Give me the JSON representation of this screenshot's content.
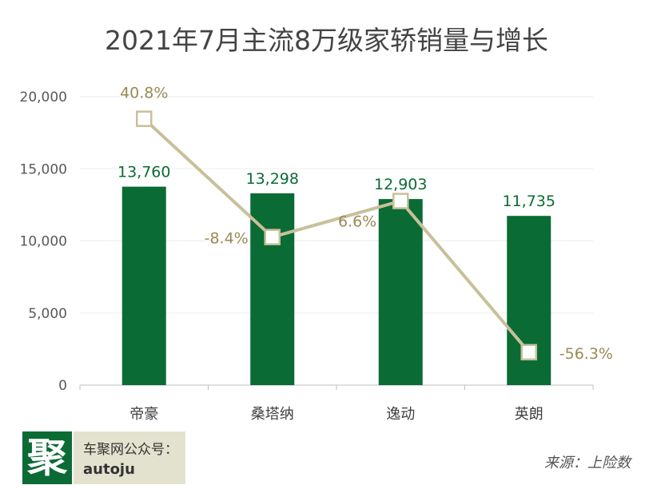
{
  "title": "2021年7月主流8万级家轿销量与增长",
  "chart_data": {
    "type": "bar",
    "categories": [
      "帝豪",
      "桑塔纳",
      "逸动",
      "英朗"
    ],
    "series": [
      {
        "values": [
          13760,
          13298,
          12903,
          11735
        ],
        "labels": [
          "13,760",
          "13,298",
          "12,903",
          "11,735"
        ],
        "kind": "bar"
      },
      {
        "values": [
          40.8,
          -8.4,
          6.6,
          -56.3
        ],
        "labels": [
          "40.8%",
          "-8.4%",
          "6.6%",
          "-56.3%"
        ],
        "kind": "line",
        "unit": "%"
      }
    ],
    "ylim": [
      0,
      20000
    ],
    "yticks": [
      0,
      5000,
      10000,
      15000,
      20000
    ],
    "ytick_labels": [
      "0",
      "5,000",
      "10,000",
      "15,000",
      "20,000"
    ],
    "grid": true,
    "colors": {
      "bar": "#0b6b35",
      "line": "#c8c09a",
      "growth_label": "#9a8a55",
      "value_label": "#0b6b35"
    }
  },
  "brand": {
    "logo_char": "聚",
    "line1": "车聚网公众号：",
    "line2": "autoju"
  },
  "source": "来源：上险数"
}
